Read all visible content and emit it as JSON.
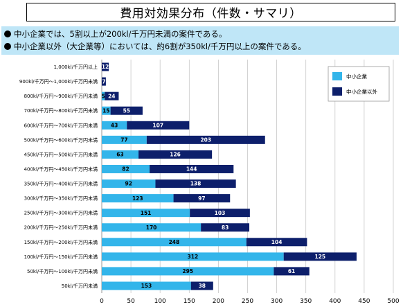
{
  "title": "費用対効果分布（件数・サマリ）",
  "summary": [
    "中小企業では、5割以上が200kl/千万円未満の案件である。",
    "中小企業以外（大企業等）においては、約6割が350kl/千万円以上の案件である。"
  ],
  "colors": {
    "sme": "#33b5ea",
    "non_sme": "#0d1f6b",
    "summary_bg": "#bfe6f7"
  },
  "chart_data": {
    "type": "bar",
    "orientation": "horizontal",
    "stacked": true,
    "categories": [
      "1,000kl/千万円以上",
      "900kl/千万円～1,000kl/千万円未満",
      "800kl/千万円～900kl/千万円未満",
      "700kl/千万円～800kl/千万円未満",
      "600kl/千万円～700kl/千万円未満",
      "500kl/千万円～600kl/千万円未満",
      "450kl/千万円～500kl/千万円未満",
      "400kl/千万円～450kl/千万円未満",
      "350kl/千万円～400kl/千万円未満",
      "300kl/千万円～350kl/千万円未満",
      "250kl/千万円～300kl/千万円未満",
      "200kl/千万円～250kl/千万円未満",
      "150kl/千万円～200kl/千万円未満",
      "100kl/千万円～150kl/千万円未満",
      "50kl/千万円～100kl/千万円未満",
      "50kl/千万円未満"
    ],
    "series": [
      {
        "name": "中小企業",
        "values": [
          0,
          0,
          5,
          15,
          43,
          77,
          63,
          82,
          92,
          123,
          151,
          170,
          248,
          312,
          295,
          153
        ]
      },
      {
        "name": "中小企業以外",
        "values": [
          12,
          7,
          24,
          55,
          107,
          203,
          126,
          144,
          138,
          97,
          103,
          83,
          104,
          125,
          61,
          38
        ]
      }
    ],
    "data_labels": [
      [
        "",
        "12"
      ],
      [
        "",
        "7"
      ],
      [
        "5",
        "24"
      ],
      [
        "15",
        "55"
      ],
      [
        "43",
        "107"
      ],
      [
        "77",
        "203"
      ],
      [
        "63",
        "126"
      ],
      [
        "82",
        "144"
      ],
      [
        "92",
        "138"
      ],
      [
        "123",
        "97"
      ],
      [
        "151",
        "103"
      ],
      [
        "170",
        "83"
      ],
      [
        "248",
        "104"
      ],
      [
        "312",
        "125"
      ],
      [
        "295",
        "61"
      ],
      [
        "153",
        "38"
      ]
    ],
    "xlim": [
      0,
      500
    ],
    "xticks": [
      "0",
      "50",
      "100",
      "150",
      "200",
      "250",
      "300",
      "350",
      "400",
      "450",
      "500"
    ],
    "grid": true,
    "legend_position": "top-right"
  }
}
